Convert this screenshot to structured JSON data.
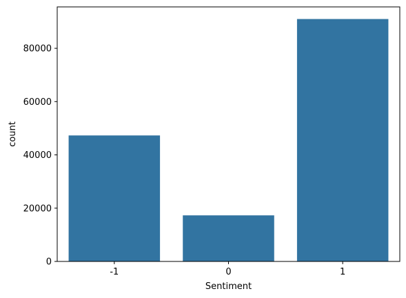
{
  "chart_data": {
    "type": "bar",
    "categories": [
      "-1",
      "0",
      "1"
    ],
    "values": [
      47300,
      17300,
      91000
    ],
    "xlabel": "Sentiment",
    "ylabel": "count",
    "ylim": [
      0,
      95550
    ],
    "yticks": [
      0,
      20000,
      40000,
      60000,
      80000
    ],
    "ytick_labels": [
      "0",
      "20000",
      "40000",
      "60000",
      "80000"
    ],
    "bar_color": "#3274a1",
    "grid": false,
    "legend": "none"
  }
}
